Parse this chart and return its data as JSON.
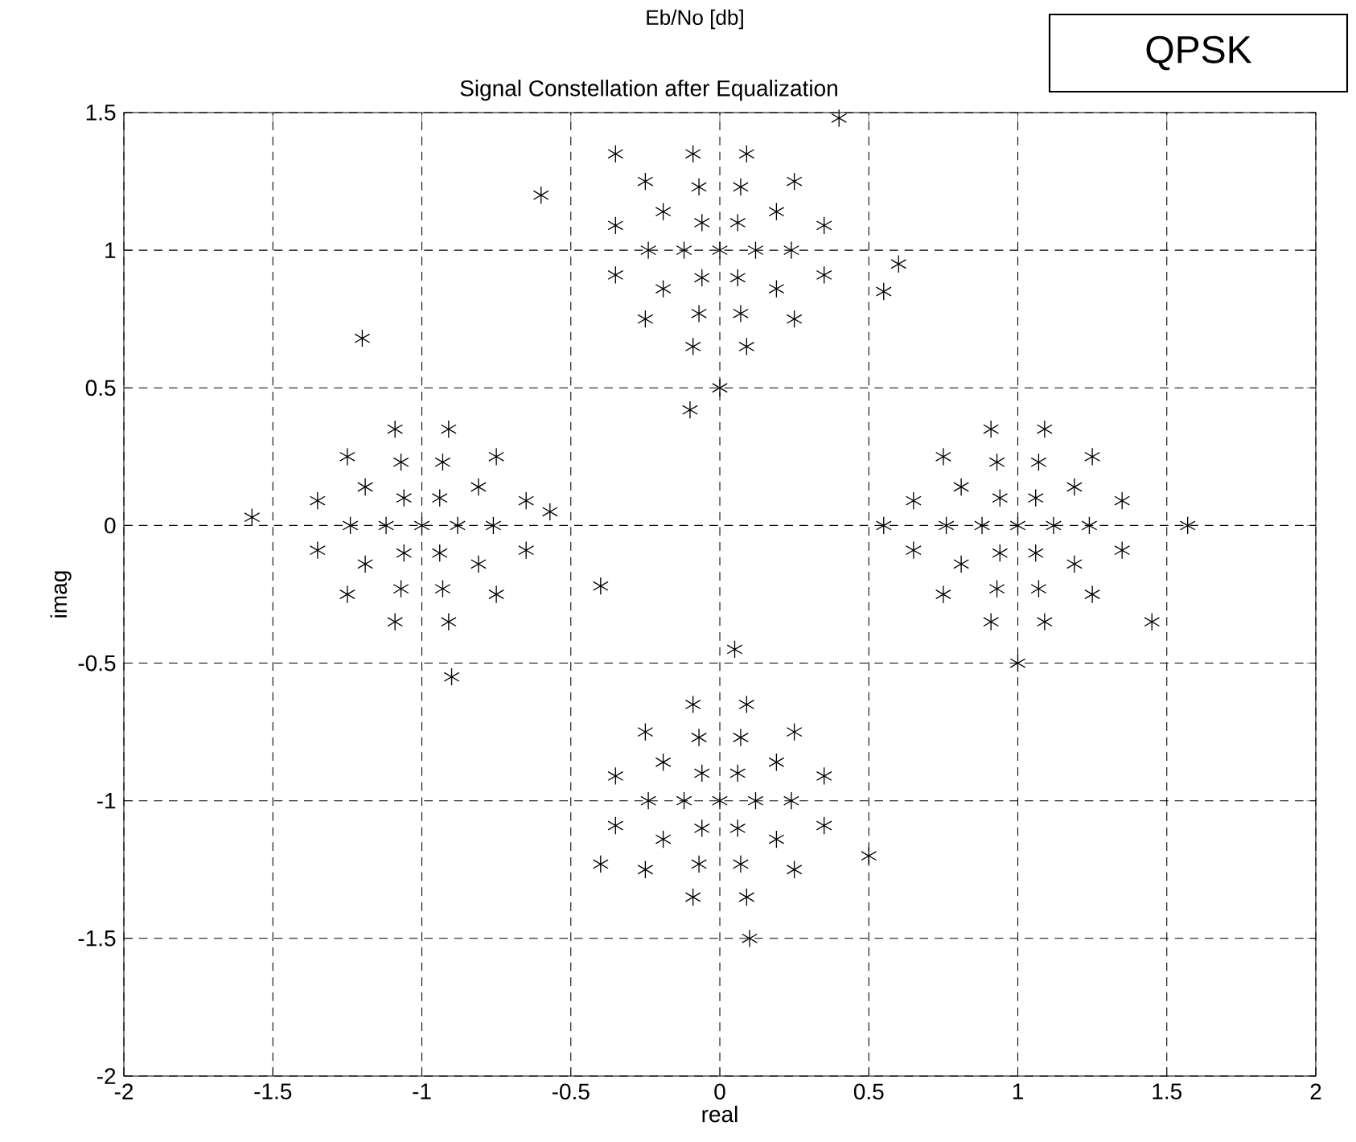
{
  "chart_data": {
    "type": "scatter",
    "title": "Signal Constellation after Equalization",
    "xlabel": "real",
    "ylabel": "imag",
    "annotations": [
      "Eb/No [db]",
      "QPSK"
    ],
    "xlim": [
      -2,
      2
    ],
    "ylim": [
      -2,
      1.5
    ],
    "xticks": [
      -2,
      -1.5,
      -1,
      -0.5,
      0,
      0.5,
      1,
      1.5,
      2
    ],
    "yticks": [
      -2,
      -1.5,
      -1,
      -0.5,
      0,
      0.5,
      1,
      1.5
    ],
    "grid": true,
    "marker": "cross",
    "series": [
      {
        "color": "#000000",
        "x": [
          0,
          0.12,
          0.06,
          -0.06,
          -0.12,
          -0.06,
          0.06,
          0.24,
          0.19,
          0.07,
          -0.07,
          -0.19,
          -0.24,
          -0.19,
          -0.07,
          0.07,
          0.19,
          0.35,
          0.25,
          0.09,
          -0.09,
          -0.25,
          -0.35,
          -0.35,
          -0.25,
          -0.09,
          0.09,
          0.25,
          0.35,
          -1,
          -0.88,
          -0.94,
          -1.06,
          -1.12,
          -1.06,
          -0.94,
          -0.76,
          -0.81,
          -0.93,
          -1.07,
          -1.19,
          -1.24,
          -1.19,
          -1.07,
          -0.93,
          -0.81,
          -0.65,
          -0.75,
          -0.91,
          -1.09,
          -1.25,
          -1.35,
          -1.35,
          -1.25,
          -1.09,
          -0.91,
          -0.75,
          -0.65,
          1,
          1.12,
          1.06,
          0.94,
          0.88,
          0.94,
          1.06,
          1.24,
          1.19,
          1.07,
          0.93,
          0.81,
          0.76,
          0.81,
          0.93,
          1.07,
          1.19,
          1.35,
          1.25,
          1.09,
          0.91,
          0.75,
          0.65,
          0.65,
          0.75,
          0.91,
          1.09,
          1.25,
          1.35,
          0,
          0.12,
          0.06,
          -0.06,
          -0.12,
          -0.06,
          0.06,
          0.24,
          0.19,
          0.07,
          -0.07,
          -0.19,
          -0.24,
          -0.19,
          -0.07,
          0.07,
          0.19,
          0.35,
          0.25,
          0.09,
          -0.09,
          -0.25,
          -0.35,
          -0.35,
          -0.25,
          -0.09,
          0.09,
          0.25,
          0.35,
          -0.6,
          -0.35,
          0.4,
          0.55,
          0.6,
          -0.1,
          0.0,
          -1.57,
          -1.2,
          -0.57,
          -0.4,
          -0.9,
          1.57,
          1.45,
          0.55,
          1.0,
          -0.4,
          0.5,
          0.05,
          0.1
        ],
        "values": [
          1,
          1,
          1.1,
          1.1,
          1,
          0.9,
          0.9,
          1,
          1.14,
          1.23,
          1.23,
          1.14,
          1,
          0.86,
          0.77,
          0.77,
          0.86,
          1.09,
          1.25,
          1.35,
          1.35,
          1.25,
          1.09,
          0.91,
          0.75,
          0.65,
          0.65,
          0.75,
          0.91,
          0,
          0,
          0.1,
          0.1,
          0,
          -0.1,
          -0.1,
          0,
          0.14,
          0.23,
          0.23,
          0.14,
          0,
          -0.14,
          -0.23,
          -0.23,
          -0.14,
          0.09,
          0.25,
          0.35,
          0.35,
          0.25,
          0.09,
          -0.09,
          -0.25,
          -0.35,
          -0.35,
          -0.25,
          -0.09,
          0,
          0,
          0.1,
          0.1,
          0,
          -0.1,
          -0.1,
          0,
          0.14,
          0.23,
          0.23,
          0.14,
          0,
          -0.14,
          -0.23,
          -0.23,
          -0.14,
          0.09,
          0.25,
          0.35,
          0.35,
          0.25,
          0.09,
          -0.09,
          -0.25,
          -0.35,
          -0.35,
          -0.25,
          -0.09,
          -1,
          -1,
          -0.9,
          -0.9,
          -1,
          -1.1,
          -1.1,
          -1,
          -0.86,
          -0.77,
          -0.77,
          -0.86,
          -1,
          -1.14,
          -1.23,
          -1.23,
          -1.14,
          -0.91,
          -0.75,
          -0.65,
          -0.65,
          -0.75,
          -0.91,
          -1.09,
          -1.25,
          -1.35,
          -1.35,
          -1.25,
          -1.09,
          1.2,
          1.35,
          1.48,
          0.85,
          0.95,
          0.42,
          0.5,
          0.03,
          0.68,
          0.05,
          -0.22,
          -0.55,
          0.0,
          -0.35,
          0.0,
          -0.5,
          -1.23,
          -1.2,
          -0.45,
          -1.5
        ]
      }
    ]
  }
}
